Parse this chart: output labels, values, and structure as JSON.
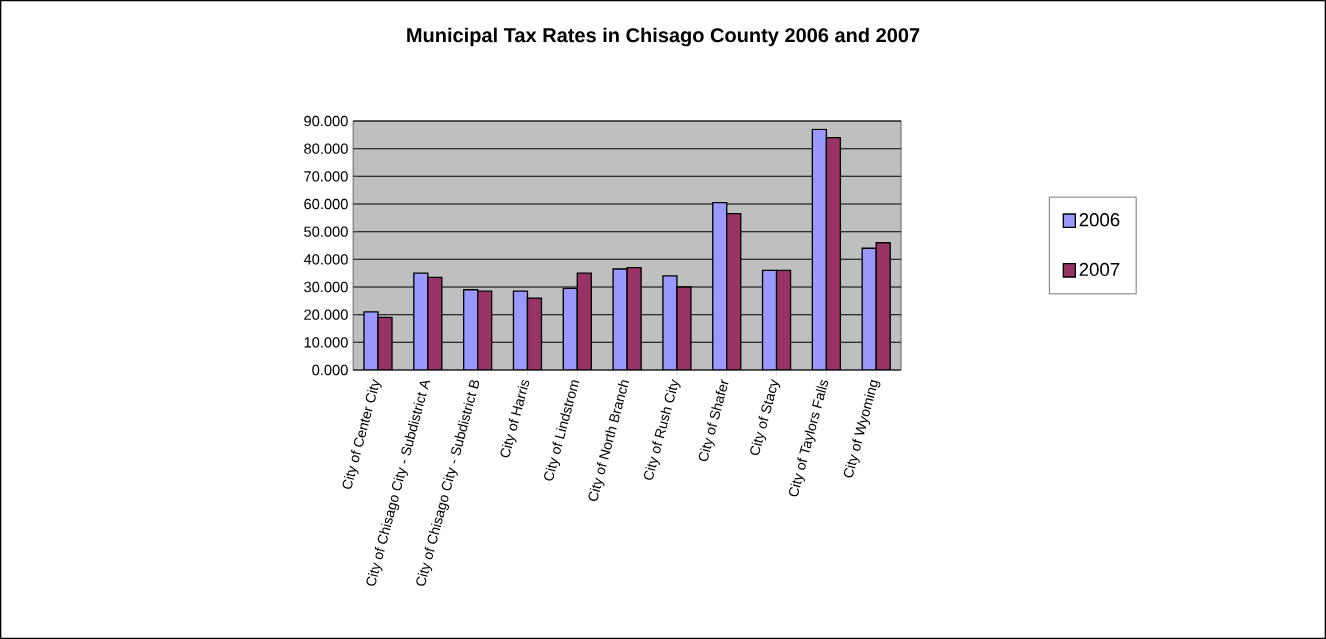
{
  "chart_data": {
    "type": "bar",
    "title": "Municipal Tax Rates in Chisago County 2006 and 2007",
    "categories": [
      "City of Center City",
      "City of Chisago City - Subdistrict A",
      "City of Chisago City - Subdistrict B",
      "City of Harris",
      "City of Lindstrom",
      "City of North Branch",
      "City of Rush City",
      "City of Shafer",
      "City of Stacy",
      "City of Taylors Falls",
      "City of Wyoming"
    ],
    "series": [
      {
        "name": "2006",
        "color": "#9999ff",
        "values": [
          21,
          35,
          29,
          28.5,
          29.5,
          36.5,
          34,
          60.5,
          36,
          87,
          44
        ]
      },
      {
        "name": "2007",
        "color": "#993366",
        "values": [
          19,
          33.5,
          28.5,
          26,
          35,
          37,
          30,
          56.5,
          36,
          84,
          46
        ]
      }
    ],
    "ylim": [
      0,
      90
    ],
    "yticks": [
      {
        "value": 0,
        "label": "0.000"
      },
      {
        "value": 10,
        "label": "10.000"
      },
      {
        "value": 20,
        "label": "20.000"
      },
      {
        "value": 30,
        "label": "30.000"
      },
      {
        "value": 40,
        "label": "40.000"
      },
      {
        "value": 50,
        "label": "50.000"
      },
      {
        "value": 60,
        "label": "60.000"
      },
      {
        "value": 70,
        "label": "70.000"
      },
      {
        "value": 80,
        "label": "80.000"
      },
      {
        "value": 90,
        "label": "90.000"
      }
    ],
    "grid": "y",
    "legend": "right"
  }
}
